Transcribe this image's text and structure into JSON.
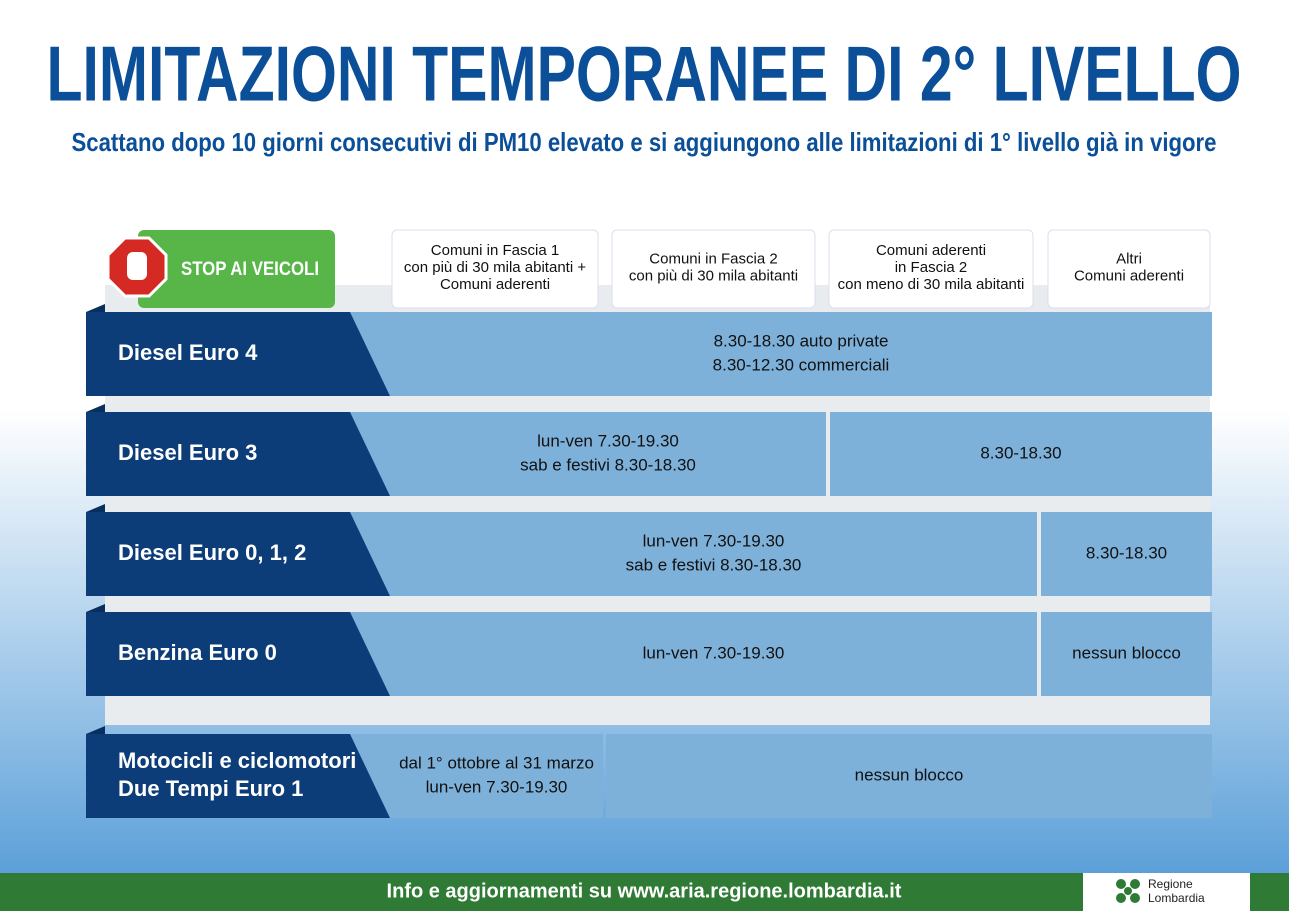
{
  "header": {
    "title": "LIMITAZIONI TEMPORANEE DI 2° LIVELLO",
    "subtitle": "Scattano dopo 10 giorni consecutivi di PM10 elevato e si aggiungono alle limitazioni di 1° livello già in vigore"
  },
  "badge": "STOP AI VEICOLI",
  "columns": [
    [
      "Comuni in Fascia 1",
      "con più di 30 mila abitanti +",
      "Comuni aderenti"
    ],
    [
      "Comuni in Fascia 2",
      "con più di 30 mila abitanti"
    ],
    [
      "Comuni aderenti",
      "in Fascia 2",
      "con meno di 30 mila abitanti"
    ],
    [
      "Altri",
      "Comuni aderenti"
    ]
  ],
  "rows": [
    {
      "label": [
        "Diesel Euro 4"
      ],
      "cells": [
        [
          "8.30-18.30 auto private",
          "8.30-12.30 commerciali"
        ]
      ]
    },
    {
      "label": [
        "Diesel Euro 3"
      ],
      "cells": [
        [
          "lun-ven 7.30-19.30",
          "sab e festivi 8.30-18.30"
        ],
        [
          "8.30-18.30"
        ]
      ]
    },
    {
      "label": [
        "Diesel Euro 0, 1, 2"
      ],
      "cells": [
        [
          "lun-ven 7.30-19.30",
          "sab e festivi 8.30-18.30"
        ],
        [
          "8.30-18.30"
        ]
      ]
    },
    {
      "label": [
        "Benzina Euro 0"
      ],
      "cells": [
        [
          "lun-ven 7.30-19.30"
        ],
        [
          "nessun blocco"
        ]
      ]
    },
    {
      "label": [
        "Motocicli e ciclomotori",
        "Due Tempi Euro 1"
      ],
      "cells": [
        [
          "dal 1° ottobre al 31 marzo",
          "lun-ven 7.30-19.30"
        ],
        [
          "nessun blocco"
        ]
      ]
    }
  ],
  "footer": {
    "text": "Info e aggiornamenti su www.aria.regione.lombardia.it",
    "logo": [
      "Regione",
      "Lombardia"
    ]
  }
}
